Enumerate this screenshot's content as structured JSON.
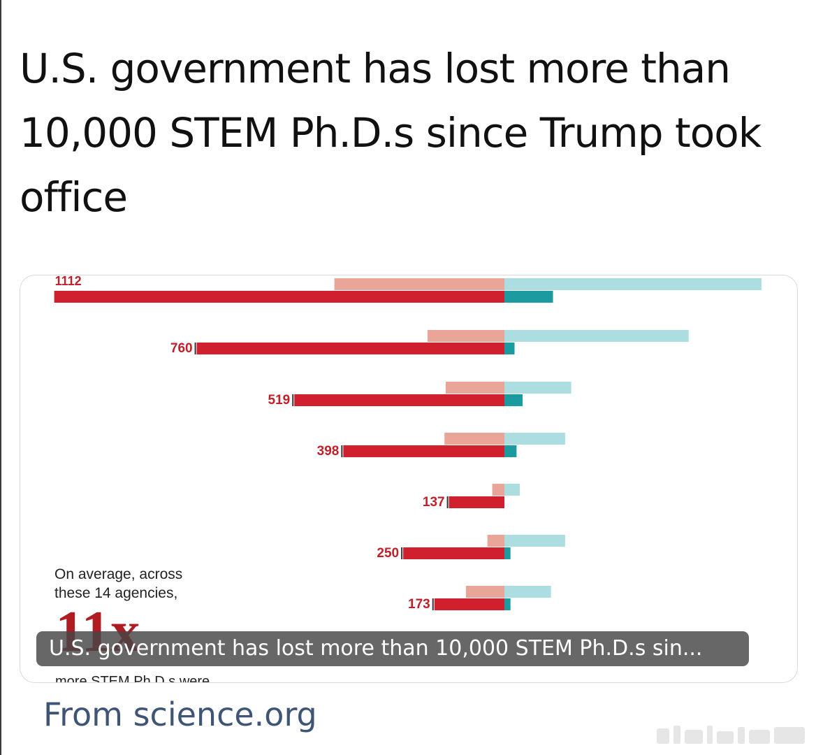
{
  "post": {
    "headline": "U.S. government has lost more than 10,000 STEM Ph.D.s since Trump took office",
    "source_label": "From science.org",
    "caption_overlay": "U.S. government has lost more than 10,000 STEM Ph.D.s sin..."
  },
  "chart_note": {
    "line1": "On average, across",
    "line2": "these 14 agencies,",
    "multiplier": "11x",
    "cut_off_text": "more STEM Ph.D.s were"
  },
  "colors": {
    "departed_strong": "#d01f2d",
    "departed_light": "#e9a597",
    "hired_strong": "#1b9aa0",
    "hired_light": "#acdde1",
    "label_text": "#c0202a",
    "caption_bg": "#464646",
    "source_text": "#3f5575"
  },
  "chart_data": {
    "type": "bar",
    "categories": [
      "",
      "",
      "",
      "",
      "",
      "",
      "",
      ""
    ],
    "series": [
      {
        "values": [
          1112,
          760,
          519,
          398,
          137,
          250,
          173,
          null
        ]
      },
      {
        "values": [
          420,
          190,
          145,
          148,
          30,
          42,
          95,
          null
        ]
      },
      {
        "values": [
          120,
          25,
          45,
          30,
          0,
          15,
          15,
          null
        ]
      },
      {
        "values": [
          635,
          455,
          165,
          150,
          38,
          150,
          115,
          null
        ]
      }
    ],
    "labels": [
      "1112",
      "760",
      "519",
      "398",
      "137",
      "250",
      "173"
    ]
  }
}
